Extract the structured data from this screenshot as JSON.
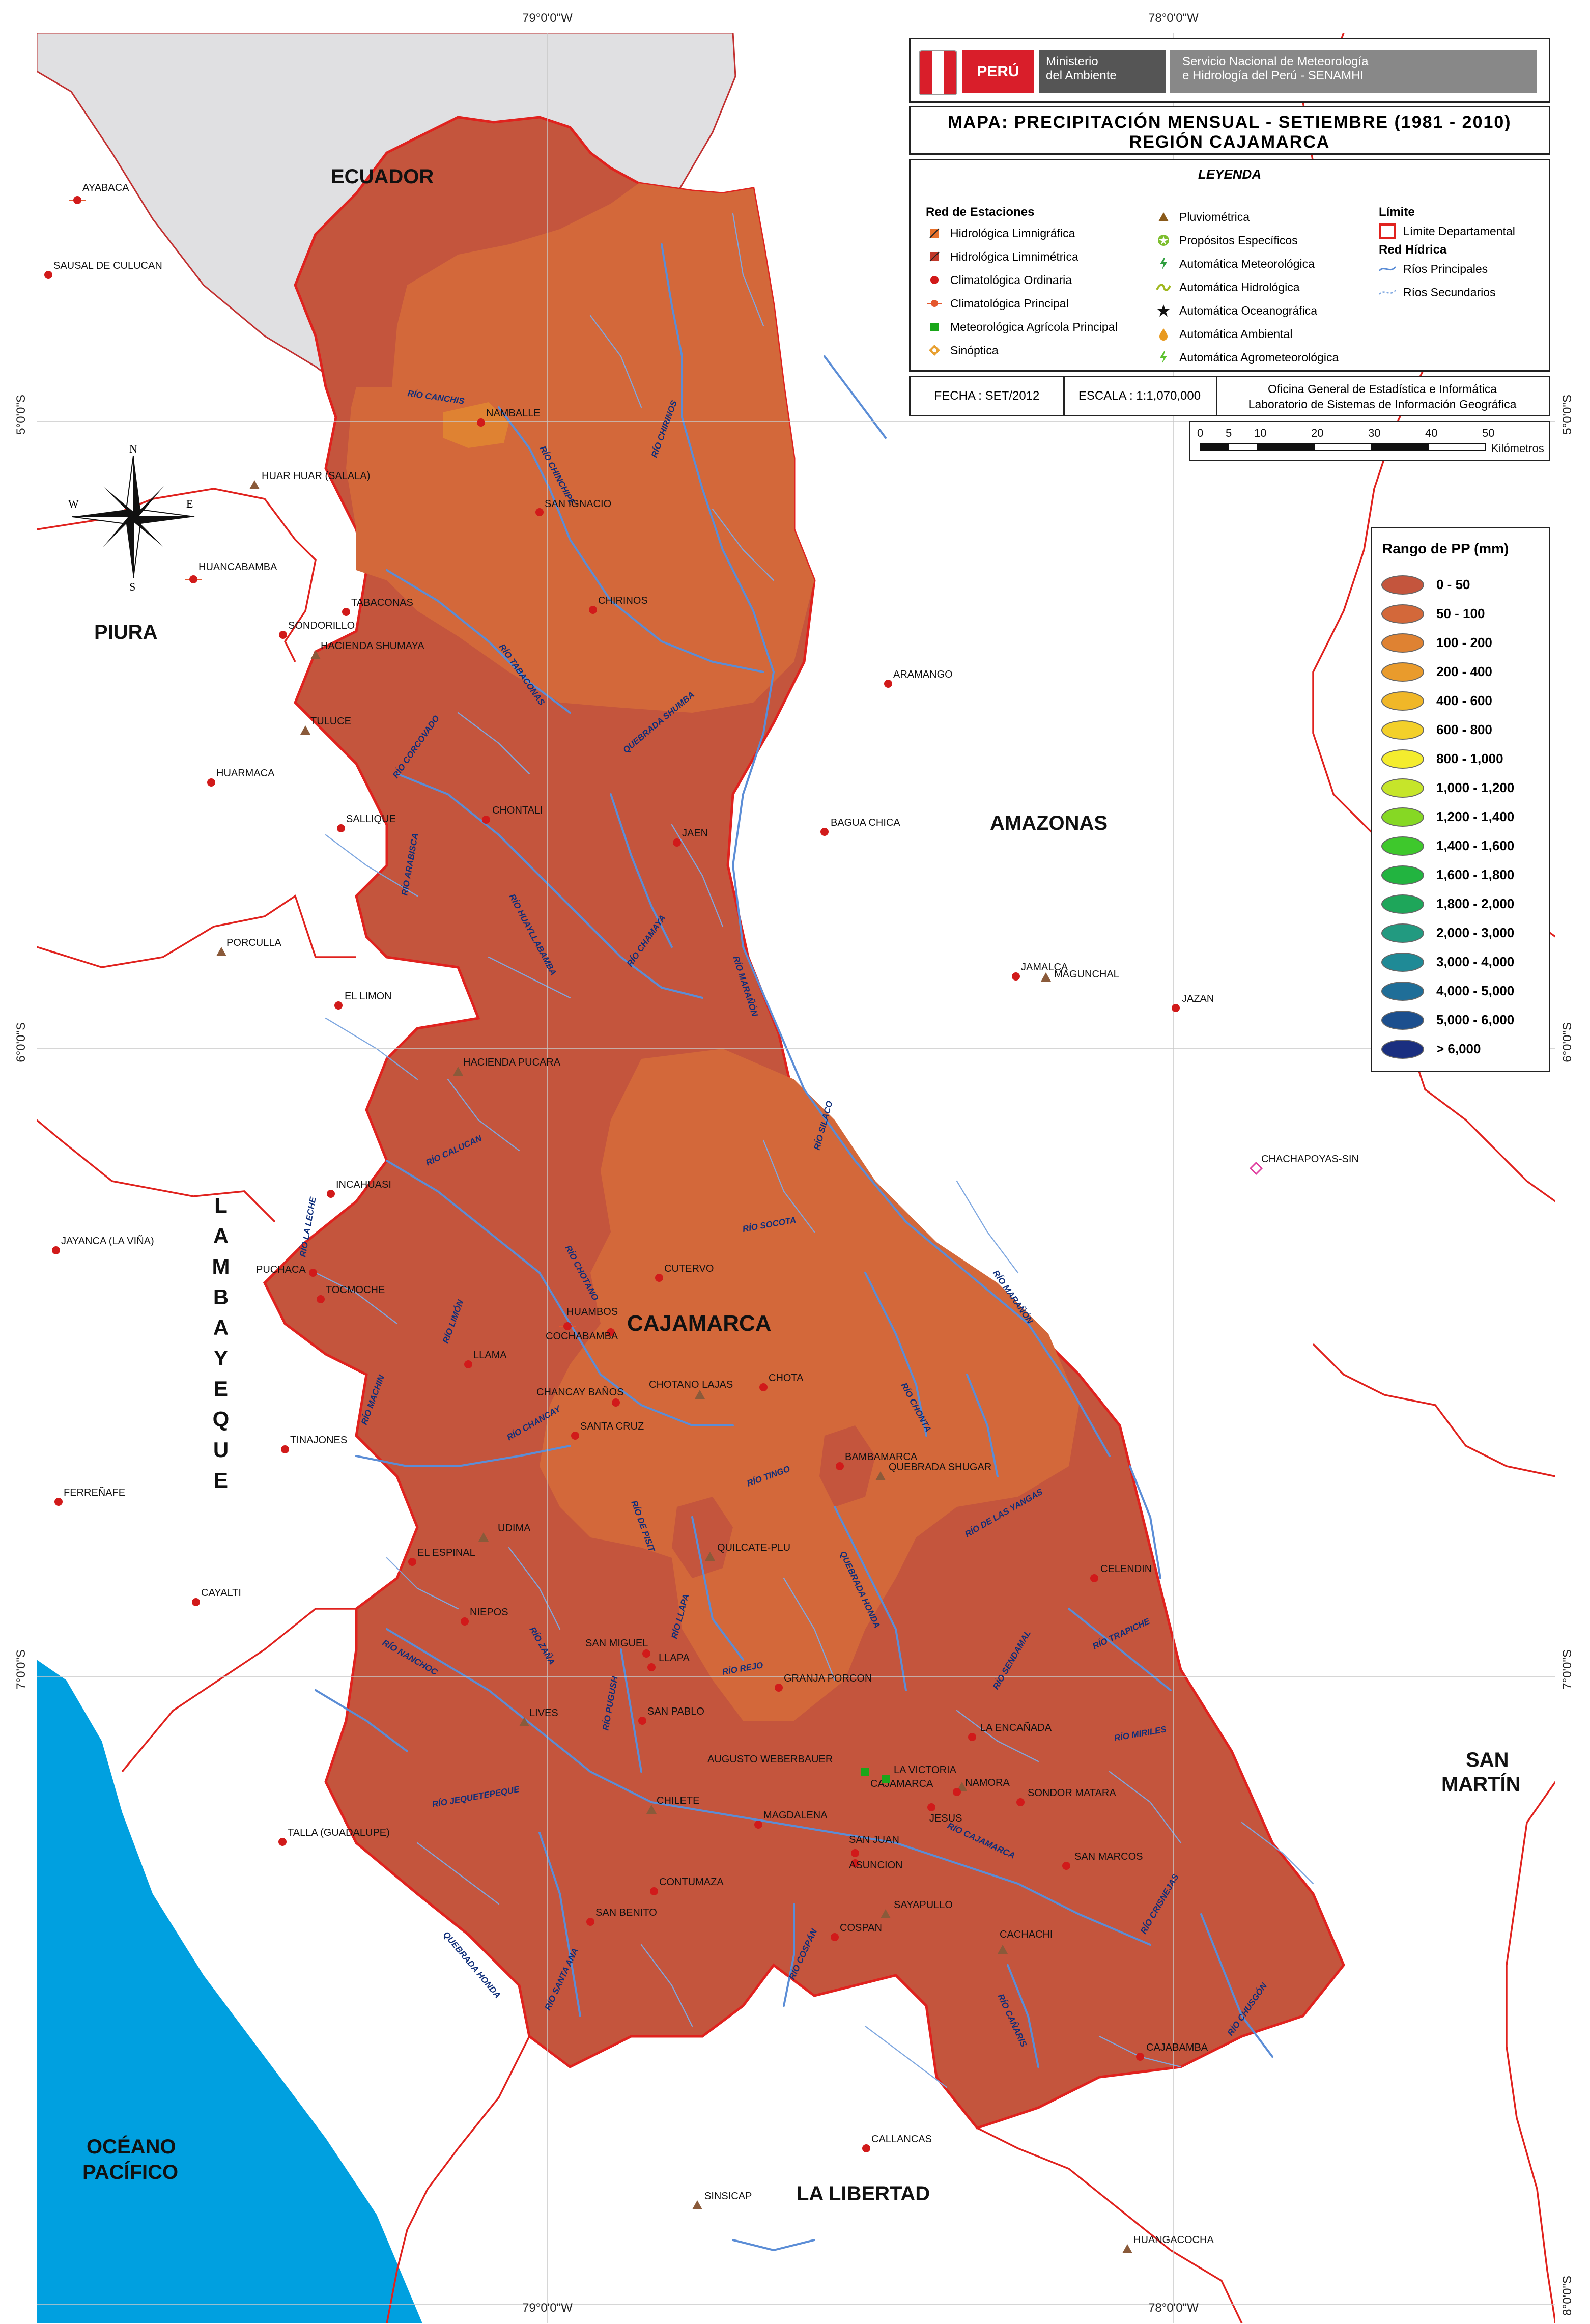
{
  "coordinates": {
    "top": [
      "79°0'0\"W",
      "78°0'0\"W"
    ],
    "bottom": [
      "79°0'0\"W",
      "78°0'0\"W"
    ],
    "left": [
      "5°0'0\"S",
      "6°0'0\"S",
      "7°0'0\"S"
    ],
    "right": [
      "5°0'0\"S",
      "6°0'0\"S",
      "7°0'0\"S",
      "8°0'0\"S"
    ]
  },
  "header": {
    "peru": "PERÚ",
    "ministry_line1": "Ministerio",
    "ministry_line2": "del Ambiente",
    "senamhi_line1": "Servicio Nacional de Meteorología",
    "senamhi_line2": "e Hidrología del Perú - SENAMHI",
    "title_line1": "MAPA: PRECIPITACIÓN MENSUAL - SETIEMBRE (1981 - 2010)",
    "title_line2": "REGIÓN CAJAMARCA"
  },
  "legend": {
    "title": "LEYENDA",
    "stations_title": "Red de Estaciones",
    "stations": [
      {
        "label": "Hidrológica Limnigráfica",
        "icon": "flag-icon",
        "color": "#e8702a"
      },
      {
        "label": "Hidrológica Limnimétrica",
        "icon": "flag-icon",
        "color": "#c0392b"
      },
      {
        "label": "Climatológica Ordinaria",
        "icon": "dot-icon",
        "color": "#d11a1a"
      },
      {
        "label": "Climatológica Principal",
        "icon": "dot-line-icon",
        "color": "#e4572e"
      },
      {
        "label": "Meteorológica Agrícola Principal",
        "icon": "square-icon",
        "color": "#1aa61a"
      },
      {
        "label": "Sinóptica",
        "icon": "diamond-icon",
        "color": "#e8a030"
      }
    ],
    "stations2": [
      {
        "label": "Pluviométrica",
        "icon": "triangle-icon",
        "color": "#8a5a1a"
      },
      {
        "label": "Propósitos Específicos",
        "icon": "star-circle-icon",
        "color": "#7dbe2e"
      },
      {
        "label": "Automática Meteorológica",
        "icon": "bolt-icon",
        "color": "#2e9e3e"
      },
      {
        "label": "Automática Hidrológica",
        "icon": "wave-icon",
        "color": "#a0b820"
      },
      {
        "label": "Automática Oceanográfica",
        "icon": "star-icon",
        "color": "#111111"
      },
      {
        "label": "Automática Ambiental",
        "icon": "drop-icon",
        "color": "#e89a20"
      },
      {
        "label": "Automática Agrometeorológica",
        "icon": "bolt-icon",
        "color": "#5cc22e"
      }
    ],
    "limit_title": "Límite",
    "limit_item": "Límite Departamental",
    "hydro_title": "Red Hídrica",
    "hydro_items": [
      "Ríos Principales",
      "Ríos Secundarios"
    ]
  },
  "info": {
    "date": "FECHA :  SET/2012",
    "scale": "ESCALA : 1:1,070,000",
    "office_line1": "Oficina General de Estadística e Informática",
    "office_line2": "Laboratorio de Sistemas de Información Geográfica"
  },
  "scalebar": {
    "ticks": [
      "0",
      "5",
      "10",
      "20",
      "30",
      "40",
      "50"
    ],
    "unit": "Kilómetros"
  },
  "range_legend": {
    "title": "Rango de PP (mm)",
    "items": [
      {
        "label": "0 - 50",
        "color": "#c4553d"
      },
      {
        "label": "50 - 100",
        "color": "#d3683a"
      },
      {
        "label": "100 - 200",
        "color": "#df8232"
      },
      {
        "label": "200 - 400",
        "color": "#e99b2c"
      },
      {
        "label": "400 - 600",
        "color": "#f0b728"
      },
      {
        "label": "600 - 800",
        "color": "#f3d02a"
      },
      {
        "label": "800 - 1,000",
        "color": "#f4ec2e"
      },
      {
        "label": "1,000 - 1,200",
        "color": "#c6e52a"
      },
      {
        "label": "1,200 - 1,400",
        "color": "#86d824"
      },
      {
        "label": "1,400 - 1,600",
        "color": "#3ec82c"
      },
      {
        "label": "1,600 - 1,800",
        "color": "#22b440"
      },
      {
        "label": "1,800 - 2,000",
        "color": "#1ea65a"
      },
      {
        "label": "2,000 - 3,000",
        "color": "#229a80"
      },
      {
        "label": "3,000 - 4,000",
        "color": "#1f8a96"
      },
      {
        "label": "4,000 - 5,000",
        "color": "#1f6e98"
      },
      {
        "label": "5,000 - 6,000",
        "color": "#1c4f8e"
      },
      {
        "label": "> 6,000",
        "color": "#1a2f80"
      }
    ]
  },
  "compass": {
    "n": "N",
    "s": "S",
    "e": "E",
    "w": "W"
  },
  "regions": {
    "ecuador": "ECUADOR",
    "piura": "PIURA",
    "amazonas": "AMAZONAS",
    "cajamarca": "CAJAMARCA",
    "lambayeque": [
      "L",
      "A",
      "M",
      "B",
      "A",
      "Y",
      "E",
      "Q",
      "U",
      "E"
    ],
    "san_martin": [
      "SAN",
      "MARTÍN"
    ],
    "oceano": [
      "OCÉANO",
      "PACÍFICO"
    ],
    "la_libertad": "LA LIBERTAD"
  },
  "rivers": [
    "RÍO CANCHIS",
    "RÍO CHIRINOS",
    "RÍO CHINCHIPE",
    "RÍO TABACONAS",
    "QUEBRADA SHUMBA",
    "RÍO CORCOVADO",
    "RÍO HUAYLLABAMBA",
    "RÍO ARABISCA",
    "RÍO CHAMAYA",
    "RÍO MARAÑÓN",
    "RÍO CALUCAN",
    "RÍO CHOTANO",
    "RÍO LA LECHE",
    "RÍO SOCOTA",
    "RÍO SILACO",
    "RÍO LIMÓN",
    "RÍO MACHIN",
    "RÍO CHANCAY",
    "RÍO CHONTA",
    "RÍO DE PISIT",
    "RÍO TINGO",
    "RÍO DE LAS YANGAS",
    "RÍO MARAÑÓN",
    "RÍO ZAÑA",
    "RÍO LLAPA",
    "QUEBRADA HONDA",
    "RÍO NANCHOC",
    "RÍO PUGUSH",
    "RÍO REJO",
    "RÍO SENDAMAL",
    "RÍO TRAPICHE",
    "RÍO JEQUETEPEQUE",
    "RÍO MIRILES",
    "RÍO CAJAMARCA",
    "RÍO CRISNEJAS",
    "QUEBRADA HONDA",
    "RÍO SANTA ANA",
    "RÍO COSPÁN",
    "RÍO CAÑARIS",
    "RÍO CHUSGÓN"
  ],
  "stations": [
    "AYABACA",
    "SAUSAL DE CULUCAN",
    "NAMBALLE",
    "HUAR HUAR (SALALA)",
    "SAN IGNACIO",
    "HUANCABAMBA",
    "CHIRINOS",
    "SONDORILLO",
    "TABACONAS",
    "HACIENDA SHUMAYA",
    "ARAMANGO",
    "TULUCE",
    "HUARMACA",
    "SALLIQUE",
    "CHONTALI",
    "JAEN",
    "BAGUA CHICA",
    "PORCULLA",
    "JAMALCA",
    "MAGUNCHAL",
    "JAZAN",
    "EL LIMON",
    "HACIENDA PUCARA",
    "CHACHAPOYAS-SIN",
    "INCAHUASI",
    "JAYANCA (LA VIÑA)",
    "CUTERVO",
    "PUCHACA",
    "TOCMOCHE",
    "HUAMBOS",
    "COCHABAMBA",
    "LLAMA",
    "CHOTANO LAJAS",
    "CHOTA",
    "CHANCAY BAÑOS",
    "SANTA CRUZ",
    "TINAJONES",
    "BAMBAMARCA",
    "QUEBRADA SHUGAR",
    "FERREÑAFE",
    "UDIMA",
    "QUILCATE-PLU",
    "EL ESPINAL",
    "CELENDIN",
    "CAYALTI",
    "NIEPOS",
    "SAN MIGUEL",
    "LLAPA",
    "GRANJA PORCON",
    "LIVES",
    "SAN PABLO",
    "CAJAMARCA",
    "LA ENCAÑADA",
    "AUGUSTO WEBERBAUER",
    "LA VICTORIA",
    "NAMORA",
    "JESUS",
    "SONDOR MATARA",
    "CHILETE",
    "MAGDALENA",
    "SAN JUAN",
    "ASUNCION",
    "SAN MARCOS",
    "TALLA (GUADALUPE)",
    "CONTUMAZA",
    "SAN BENITO",
    "SAYAPULLO",
    "COSPAN",
    "CACHACHI",
    "CAJABAMBA",
    "CALLANCAS",
    "SINSICAP",
    "HUANGACOCHA"
  ]
}
